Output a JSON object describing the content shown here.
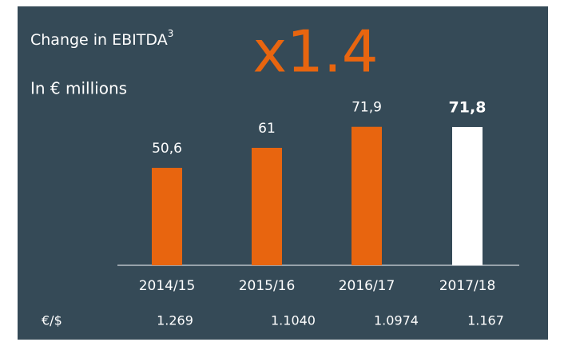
{
  "chart_data": {
    "type": "bar",
    "title": "Change in EBITDA",
    "title_note": "3",
    "subtitle": "In € millions",
    "annotation": "x1.4",
    "categories": [
      "2014/15",
      "2015/16",
      "2016/17",
      "2017/18"
    ],
    "values": [
      50.6,
      61,
      71.9,
      71.8
    ],
    "value_labels": [
      "50,6",
      "61",
      "71,9",
      "71,8"
    ],
    "colors": [
      "#e8650f",
      "#e8650f",
      "#e8650f",
      "#ffffff"
    ],
    "exchange_rate": {
      "label": "€/$",
      "values": [
        "1.269",
        "1.1040",
        "1.0974",
        "1.167"
      ]
    }
  }
}
